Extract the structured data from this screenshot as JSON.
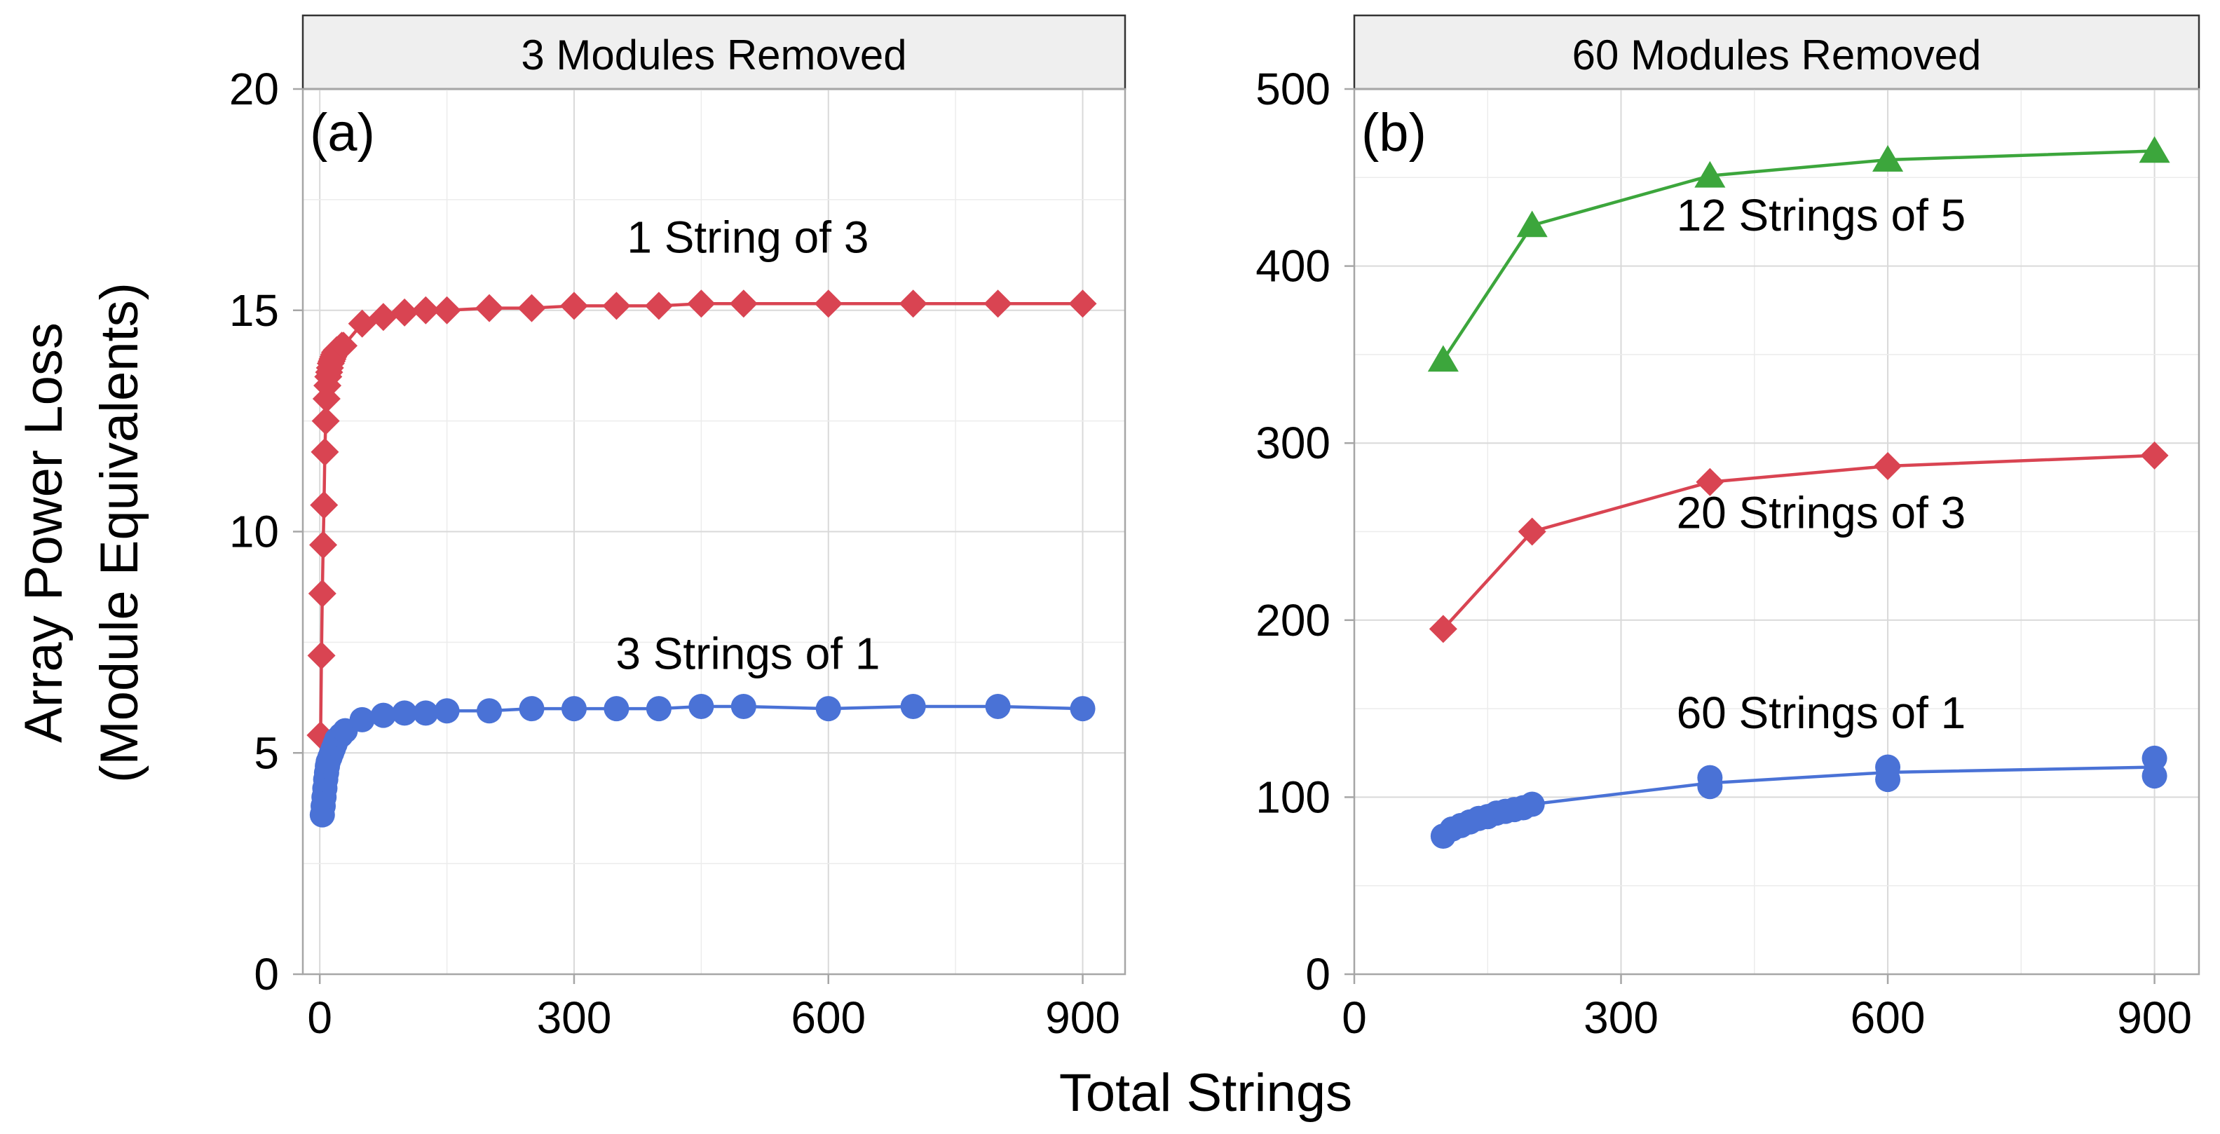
{
  "figure": {
    "ylabel_line1": "Array Power Loss",
    "ylabel_line2": "(Module Equivalents)",
    "xlabel": "Total Strings"
  },
  "chart_data": [
    {
      "type": "line",
      "panel_label": "(a)",
      "title": "3 Modules Removed",
      "xlabel": "Total Strings",
      "ylabel": "Array Power Loss (Module Equivalents)",
      "xlim": [
        -20,
        950
      ],
      "ylim": [
        0,
        20
      ],
      "xticks": [
        0,
        300,
        600,
        900
      ],
      "yticks": [
        0,
        5,
        10,
        15,
        20
      ],
      "grid": true,
      "series": [
        {
          "name": "1 String of 3",
          "color": "#d94452",
          "marker": "diamond",
          "label_at": [
            505,
            16.3
          ],
          "x": [
            1,
            2,
            3,
            4,
            5,
            6,
            7,
            8,
            9,
            10,
            11,
            12,
            13,
            14,
            15,
            16,
            17,
            18,
            19,
            20,
            22,
            24,
            26,
            28,
            50,
            75,
            100,
            125,
            150,
            200,
            250,
            300,
            350,
            400,
            450,
            500,
            600,
            700,
            800,
            900
          ],
          "y": [
            5.4,
            7.2,
            8.6,
            9.7,
            10.6,
            11.8,
            12.5,
            13.0,
            13.3,
            13.5,
            13.6,
            13.7,
            13.8,
            13.85,
            13.9,
            13.95,
            14.0,
            14.05,
            14.05,
            14.1,
            14.1,
            14.15,
            14.2,
            14.2,
            14.7,
            14.85,
            14.95,
            15.0,
            15.0,
            15.05,
            15.05,
            15.1,
            15.1,
            15.1,
            15.15,
            15.15,
            15.15,
            15.15,
            15.15,
            15.15
          ]
        },
        {
          "name": "3 Strings of 1",
          "color": "#4a72d6",
          "marker": "circle",
          "label_at": [
            505,
            6.9
          ],
          "x": [
            3,
            4,
            5,
            6,
            7,
            8,
            9,
            10,
            12,
            14,
            16,
            18,
            20,
            25,
            30,
            50,
            75,
            100,
            125,
            150,
            200,
            250,
            300,
            350,
            400,
            450,
            500,
            600,
            700,
            800,
            900
          ],
          "y": [
            3.6,
            3.8,
            4.0,
            4.2,
            4.4,
            4.55,
            4.7,
            4.8,
            4.9,
            5.0,
            5.1,
            5.2,
            5.3,
            5.4,
            5.5,
            5.75,
            5.85,
            5.9,
            5.9,
            5.95,
            5.95,
            6.0,
            6.0,
            6.0,
            6.0,
            6.05,
            6.05,
            6.0,
            6.05,
            6.05,
            6.0
          ]
        }
      ]
    },
    {
      "type": "line",
      "panel_label": "(b)",
      "title": "60 Modules Removed",
      "xlabel": "Total Strings",
      "ylabel": "Array Power Loss (Module Equivalents)",
      "xlim": [
        0,
        950
      ],
      "ylim": [
        0,
        500
      ],
      "xticks": [
        0,
        300,
        600,
        900
      ],
      "yticks": [
        0,
        100,
        200,
        300,
        400,
        500
      ],
      "grid": true,
      "series": [
        {
          "name": "12 Strings of 5",
          "color": "#3ca63c",
          "marker": "triangle",
          "label_at": [
            525,
            420
          ],
          "x": [
            100,
            200,
            400,
            600,
            900
          ],
          "y": [
            347,
            423,
            451,
            460,
            465
          ]
        },
        {
          "name": "20 Strings of 3",
          "color": "#d94452",
          "marker": "diamond",
          "label_at": [
            525,
            252
          ],
          "x": [
            100,
            200,
            400,
            600,
            900
          ],
          "y": [
            195,
            250,
            278,
            287,
            293
          ]
        },
        {
          "name": "60 Strings of 1",
          "color": "#4a72d6",
          "marker": "circle",
          "label_at": [
            525,
            139
          ],
          "x": [
            100,
            110,
            120,
            130,
            140,
            150,
            160,
            170,
            180,
            190,
            200,
            400,
            400,
            600,
            600,
            900,
            900
          ],
          "y": [
            78,
            82,
            84,
            86,
            88,
            89,
            91,
            92,
            93,
            94,
            96,
            106,
            111,
            110,
            117,
            112,
            122
          ],
          "line_x": [
            100,
            200,
            400,
            600,
            900
          ],
          "line_y": [
            78,
            96,
            108,
            114,
            117
          ]
        }
      ]
    }
  ]
}
